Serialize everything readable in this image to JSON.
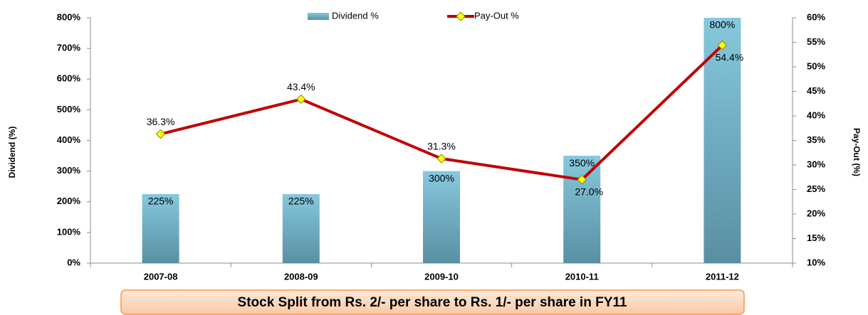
{
  "chart_data": {
    "type": "bar-line",
    "categories": [
      "2007-08",
      "2008-09",
      "2009-10",
      "2010-11",
      "2011-12"
    ],
    "series": [
      {
        "name": "Dividend %",
        "type": "bar",
        "color": "#6fb4cc",
        "values": [
          225,
          225,
          300,
          350,
          800
        ],
        "value_labels": [
          "225%",
          "225%",
          "300%",
          "350%",
          "800%"
        ]
      },
      {
        "name": "Pay-Out %",
        "type": "line",
        "axis": "y2",
        "color": "#c00000",
        "marker_color": "#ffff00",
        "values": [
          36.3,
          43.4,
          31.3,
          27.0,
          54.4
        ],
        "value_labels": [
          "36.3%",
          "43.4%",
          "31.3%",
          "27.0%",
          "54.4%"
        ]
      }
    ],
    "ylabel": "Dividend (%)",
    "y2label": "Pay-Out (%)",
    "ylim": [
      0,
      800
    ],
    "yticks": [
      {
        "value": 0,
        "label": "0%"
      },
      {
        "value": 100,
        "label": "100%"
      },
      {
        "value": 200,
        "label": "200%"
      },
      {
        "value": 300,
        "label": "300%"
      },
      {
        "value": 400,
        "label": "400%"
      },
      {
        "value": 500,
        "label": "500%"
      },
      {
        "value": 600,
        "label": "600%"
      },
      {
        "value": 700,
        "label": "700%"
      },
      {
        "value": 800,
        "label": "800%"
      }
    ],
    "y2lim": [
      10,
      60
    ],
    "y2ticks": [
      {
        "value": 10,
        "label": "10%"
      },
      {
        "value": 15,
        "label": "15%"
      },
      {
        "value": 20,
        "label": "20%"
      },
      {
        "value": 25,
        "label": "25%"
      },
      {
        "value": 30,
        "label": "30%"
      },
      {
        "value": 35,
        "label": "35%"
      },
      {
        "value": 40,
        "label": "40%"
      },
      {
        "value": 45,
        "label": "45%"
      },
      {
        "value": 50,
        "label": "50%"
      },
      {
        "value": 55,
        "label": "55%"
      },
      {
        "value": 60,
        "label": "60%"
      }
    ],
    "grid": false,
    "legend": "top",
    "annotation": "Stock Split from Rs. 2/- per share to Rs. 1/- per share in FY11"
  }
}
